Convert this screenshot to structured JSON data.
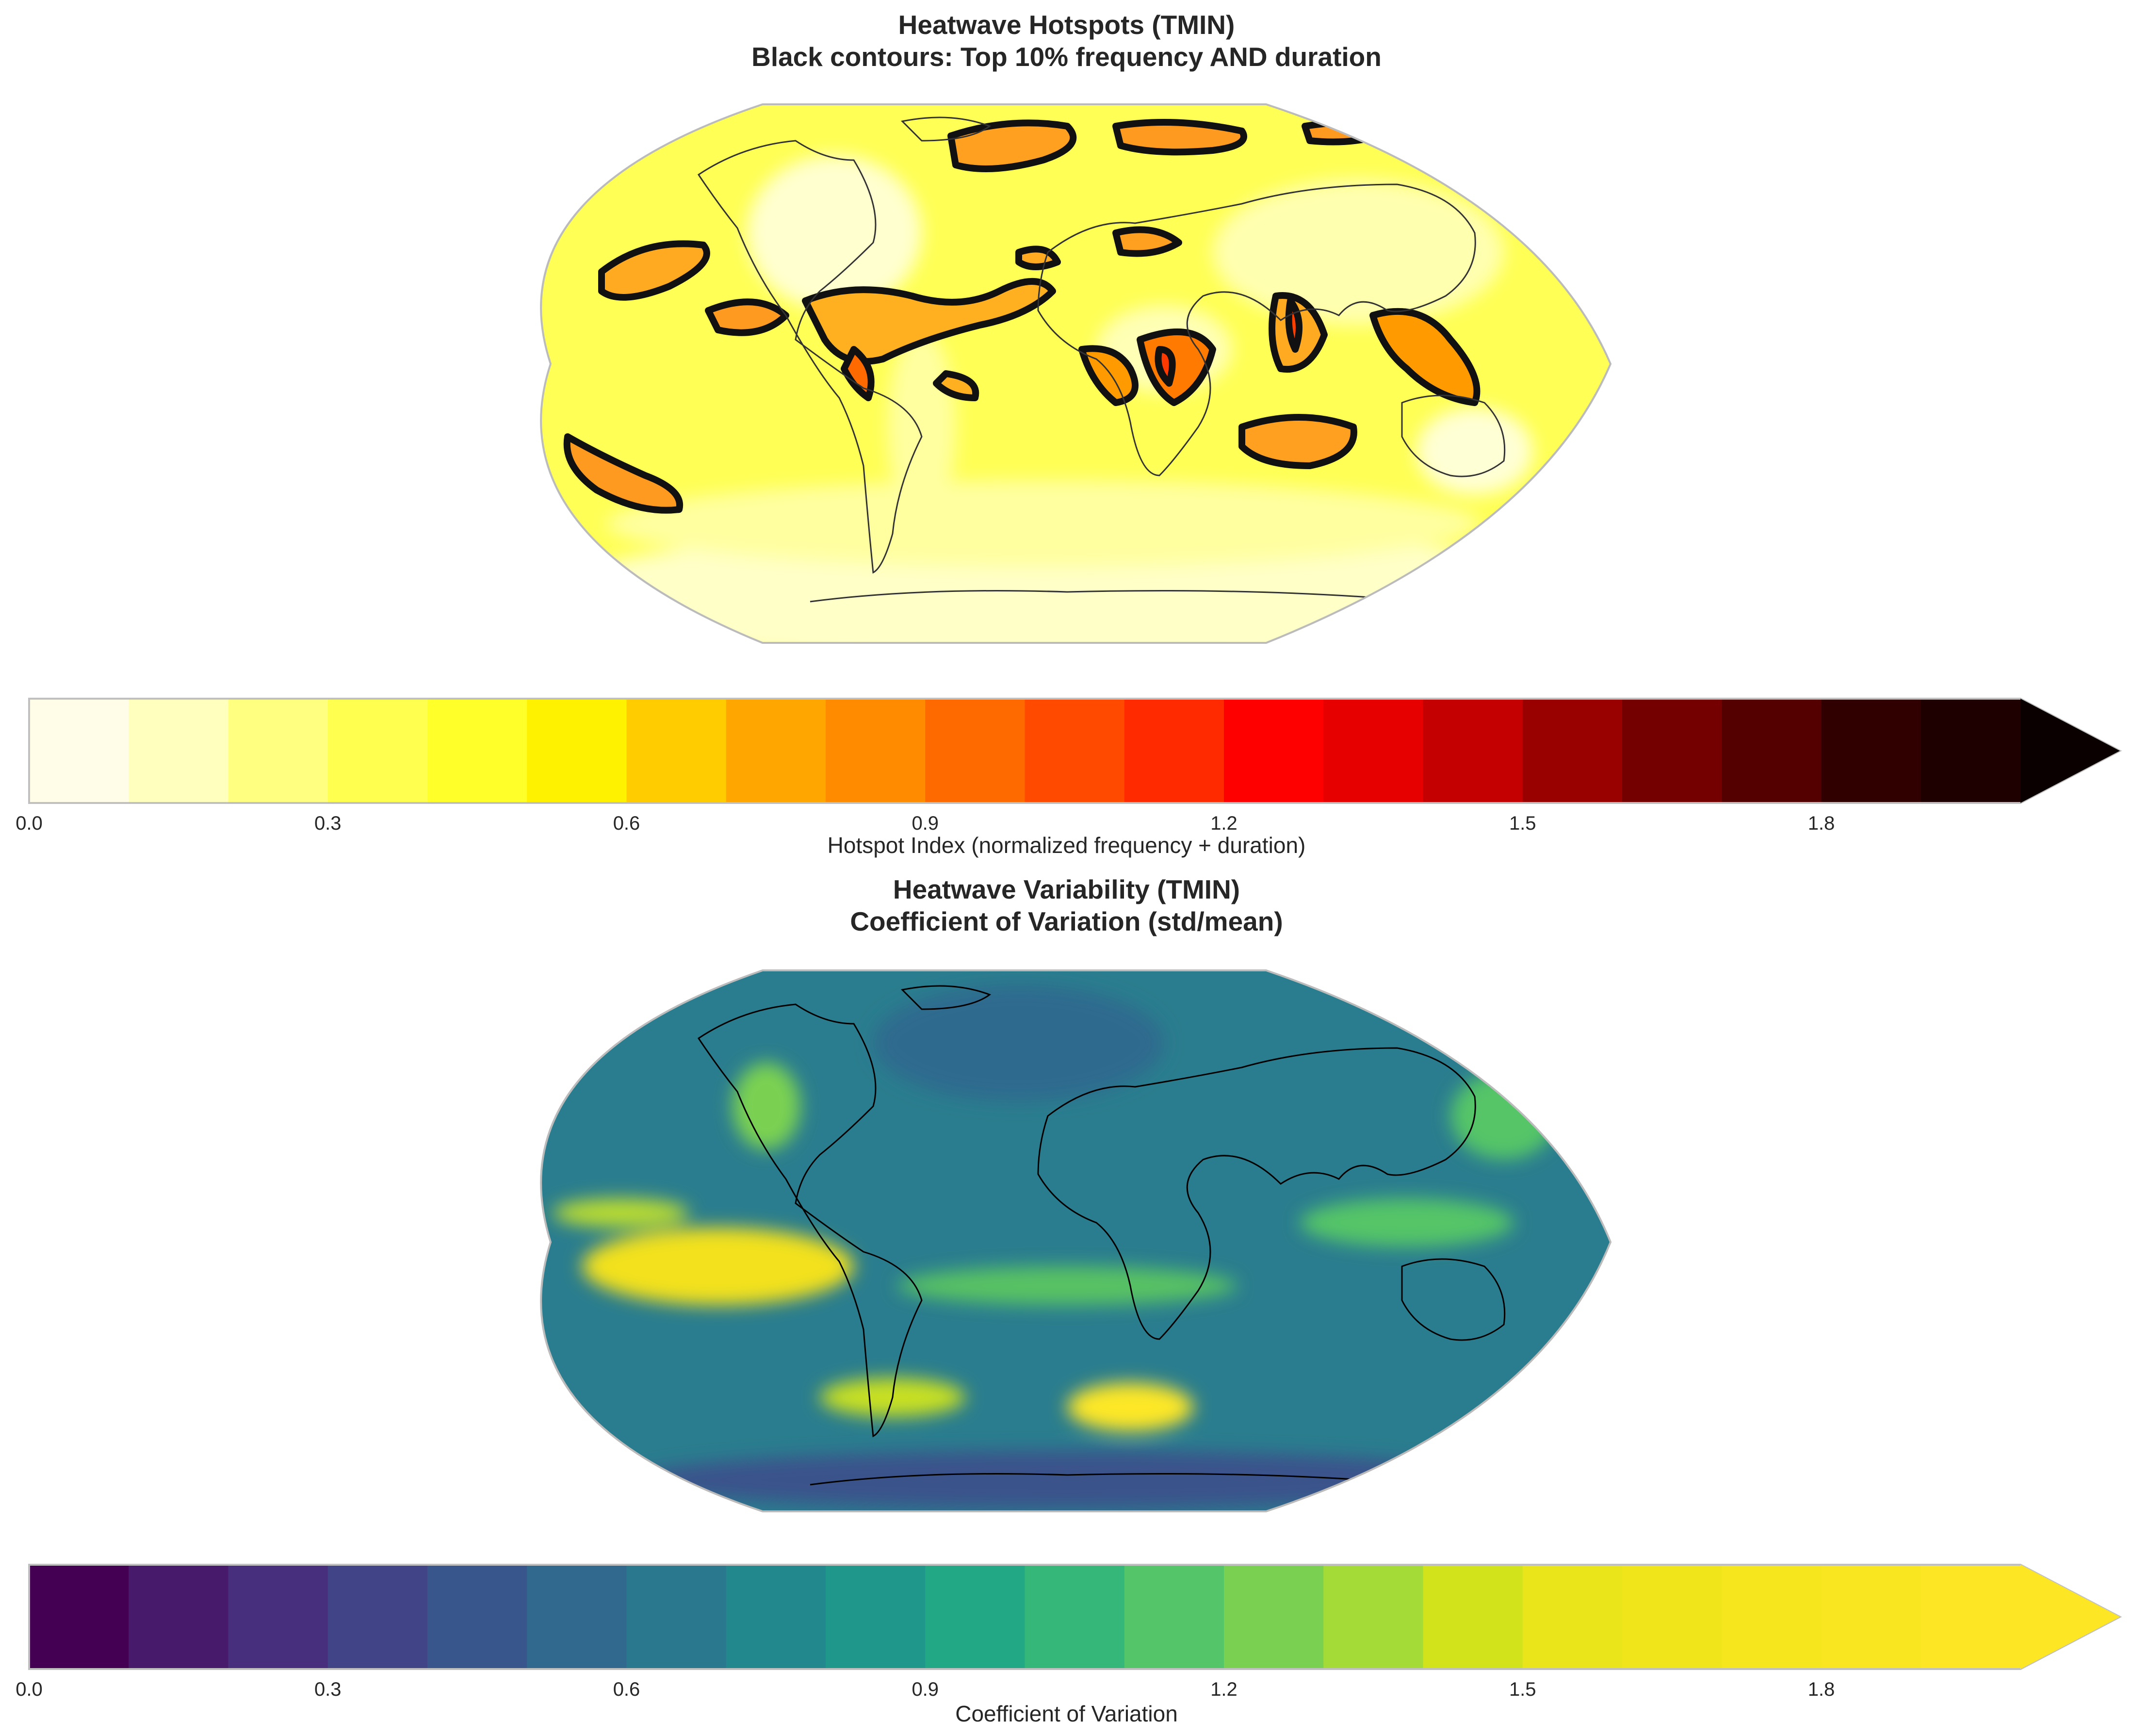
{
  "panels": [
    {
      "title_line1": "Heatwave Hotspots (TMIN)",
      "title_line2": "Black contours: Top 10% frequency AND duration",
      "colorbar": {
        "label": "Hotspot Index (normalized frequency + duration)",
        "ticks": [
          "0.0",
          "0.3",
          "0.6",
          "0.9",
          "1.2",
          "1.5",
          "1.8"
        ],
        "tick_values": [
          0.0,
          0.3,
          0.6,
          0.9,
          1.2,
          1.5,
          1.8
        ],
        "range": [
          0.0,
          2.0
        ],
        "extend": "max",
        "colormap": "YlOrRd-like (hot_r)",
        "colors": [
          "#fffde7",
          "#ffffbe",
          "#ffff80",
          "#ffff50",
          "#ffff2a",
          "#fff200",
          "#ffcc00",
          "#ffa600",
          "#ff8c00",
          "#ff6a00",
          "#ff4a00",
          "#ff2a00",
          "#ff0000",
          "#e60000",
          "#c40000",
          "#990000",
          "#740000",
          "#540000",
          "#300000",
          "#1e0000"
        ],
        "extend_color": "#0a0000"
      },
      "map": {
        "projection": "Robinson",
        "background_color": "#ffff66",
        "contour_color": "#111111"
      }
    },
    {
      "title_line1": "Heatwave Variability (TMIN)",
      "title_line2": "Coefficient of Variation (std/mean)",
      "colorbar": {
        "label": "Coefficient of Variation",
        "ticks": [
          "0.0",
          "0.3",
          "0.6",
          "0.9",
          "1.2",
          "1.5",
          "1.8"
        ],
        "tick_values": [
          0.0,
          0.3,
          0.6,
          0.9,
          1.2,
          1.5,
          1.8
        ],
        "range": [
          0.0,
          2.0
        ],
        "extend": "max",
        "colormap": "viridis",
        "colors": [
          "#440154",
          "#481a6c",
          "#472f7d",
          "#414487",
          "#39568c",
          "#31688e",
          "#2a788e",
          "#23888e",
          "#1f988b",
          "#22a884",
          "#35b779",
          "#54c568",
          "#7ad151",
          "#a5db36",
          "#d2e21b",
          "#e9e51a",
          "#f0e51b",
          "#f5e61e",
          "#f9e620",
          "#fde725"
        ],
        "extend_color": "#fde725"
      },
      "map": {
        "projection": "Robinson",
        "background_color": "#2d7f8e",
        "outline_color": "#000000"
      }
    }
  ]
}
